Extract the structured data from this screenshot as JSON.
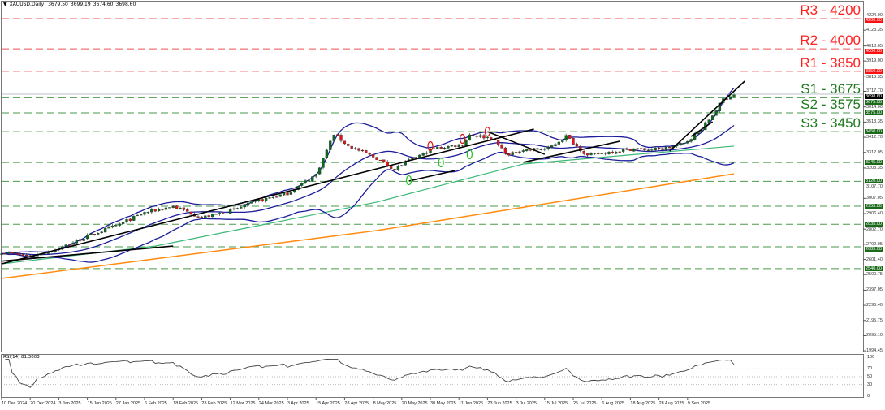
{
  "header": {
    "symbol": "XAUUSD,Daily",
    "open": "3679.50",
    "high": "3699.19",
    "low": "3674.60",
    "close": "3698.60"
  },
  "colors": {
    "up": "#0a6b1e",
    "down": "#e0161b",
    "bands": "#1c1c9c",
    "ma_fast": "#3cb878",
    "ma_slow": "#ff8c10",
    "resistance": "#ff2020",
    "support": "#1e7a1e",
    "trendline": "#000000"
  },
  "chart_data": {
    "type": "candlestick",
    "symbol": "XAUUSD",
    "timeframe": "Daily",
    "ylim": [
      1994.45,
      4224.0
    ],
    "grid": false,
    "price_ticks": [
      "4224.00",
      "4123.35",
      "4018.65",
      "3919.00",
      "3818.35",
      "3717.70",
      "3614.00",
      "3513.35",
      "3412.70",
      "3312.05",
      "3208.35",
      "3107.70",
      "3007.05",
      "2906.40",
      "2802.70",
      "2702.05",
      "2601.40",
      "2500.75",
      "2397.05",
      "2296.40",
      "2195.75",
      "2095.10",
      "1994.45"
    ],
    "date_labels": [
      "10 Dec 2024",
      "20 Dec 2024",
      "3 Jan 2025",
      "15 Jan 2025",
      "27 Jan 2025",
      "6 Feb 2025",
      "18 Feb 2025",
      "28 Feb 2025",
      "12 Mar 2025",
      "24 Mar 2025",
      "3 Apr 2025",
      "15 Apr 2025",
      "28 Apr 2025",
      "8 May 2025",
      "20 May 2025",
      "30 May 2025",
      "11 Jun 2025",
      "23 Jun 2025",
      "3 Jul 2025",
      "15 Jul 2025",
      "25 Jul 2025",
      "6 Aug 2025",
      "18 Aug 2025",
      "28 Aug 2025",
      "9 Sep 2025"
    ],
    "close_path": [
      [
        "2024-12-10",
        2650
      ],
      [
        "2024-12-20",
        2620
      ],
      [
        "2025-01-03",
        2674
      ],
      [
        "2025-01-15",
        2755
      ],
      [
        "2025-01-27",
        2825
      ],
      [
        "2025-02-06",
        2912
      ],
      [
        "2025-02-18",
        2955
      ],
      [
        "2025-02-28",
        2880
      ],
      [
        "2025-03-12",
        2922
      ],
      [
        "2025-03-24",
        2992
      ],
      [
        "2025-04-03",
        3040
      ],
      [
        "2025-04-15",
        3165
      ],
      [
        "2025-04-22",
        3435
      ],
      [
        "2025-04-28",
        3355
      ],
      [
        "2025-05-08",
        3273
      ],
      [
        "2025-05-15",
        3200
      ],
      [
        "2025-05-20",
        3245
      ],
      [
        "2025-05-30",
        3337
      ],
      [
        "2025-06-11",
        3365
      ],
      [
        "2025-06-13",
        3430
      ],
      [
        "2025-06-23",
        3408
      ],
      [
        "2025-06-30",
        3290
      ],
      [
        "2025-07-03",
        3327
      ],
      [
        "2025-07-15",
        3337
      ],
      [
        "2025-07-22",
        3420
      ],
      [
        "2025-07-25",
        3354
      ],
      [
        "2025-07-30",
        3290
      ],
      [
        "2025-08-06",
        3311
      ],
      [
        "2025-08-18",
        3337
      ],
      [
        "2025-08-22",
        3330
      ],
      [
        "2025-08-28",
        3335
      ],
      [
        "2025-09-05",
        3370
      ],
      [
        "2025-09-09",
        3410
      ],
      [
        "2025-09-12",
        3470
      ],
      [
        "2025-09-17",
        3560
      ],
      [
        "2025-09-22",
        3665
      ],
      [
        "2025-09-25",
        3698.6
      ]
    ],
    "ma_fast": [
      [
        "2024-12-10",
        2572
      ],
      [
        "2025-02-11",
        2690
      ],
      [
        "2025-05-08",
        2982
      ],
      [
        "2025-07-04",
        3235
      ],
      [
        "2025-09-25",
        3354
      ]
    ],
    "ma_slow": [
      [
        "2024-12-10",
        2475
      ],
      [
        "2025-05-08",
        2793
      ],
      [
        "2025-09-25",
        3170
      ]
    ],
    "bollinger": {
      "period": 20,
      "deviations": 2
    },
    "levels": [
      {
        "name": "R3 - 4200",
        "price": 4200,
        "tag": "4200.00",
        "kind": "resistance"
      },
      {
        "name": "R2 - 4000",
        "price": 4000,
        "tag": "4000.00",
        "kind": "resistance"
      },
      {
        "name": "R1 - 3850",
        "price": 3850,
        "tag": "3850.00",
        "kind": "resistance"
      },
      {
        "name": "S1 - 3675",
        "price": 3675,
        "tag": "3675.00",
        "kind": "support"
      },
      {
        "name": "S2 - 3575",
        "price": 3575,
        "tag": "3575.00",
        "kind": "support"
      },
      {
        "name": "S3 - 3450",
        "price": 3450,
        "tag": "3450.00",
        "kind": "support"
      },
      {
        "name": "",
        "price": 3245,
        "tag": "3245.00",
        "kind": "support"
      },
      {
        "name": "",
        "price": 3120,
        "tag": "3120.00",
        "kind": "support"
      },
      {
        "name": "",
        "price": 2955,
        "tag": "2955.00",
        "kind": "support"
      },
      {
        "name": "",
        "price": 2835,
        "tag": "2835.00",
        "kind": "support"
      },
      {
        "name": "",
        "price": 2685,
        "tag": "2685.00",
        "kind": "support"
      },
      {
        "name": "",
        "price": 2540,
        "tag": "2540.00",
        "kind": "support"
      }
    ],
    "current_price": {
      "price": 3698.6,
      "tag": "3698.60"
    },
    "trendlines": [
      [
        [
          "2024-12-10",
          2572
        ],
        [
          "2025-07-09",
          3467
        ]
      ],
      [
        [
          "2024-12-10",
          2590
        ],
        [
          "2025-02-18",
          2690
        ]
      ],
      [
        [
          "2025-05-21",
          3122
        ],
        [
          "2025-06-09",
          3192
        ]
      ],
      [
        [
          "2025-06-20",
          3450
        ],
        [
          "2025-07-14",
          3300
        ]
      ],
      [
        [
          "2025-07-04",
          3246
        ],
        [
          "2025-08-12",
          3386
        ]
      ],
      [
        [
          "2025-09-01",
          3321
        ],
        [
          "2025-09-30",
          3785
        ]
      ],
      [
        [
          "2025-09-09",
          3418
        ],
        [
          "2025-09-17",
          3515
        ]
      ]
    ],
    "markers": [
      {
        "date": "2025-05-29",
        "price": 3354,
        "color": "red"
      },
      {
        "date": "2025-06-11",
        "price": 3402,
        "color": "red"
      },
      {
        "date": "2025-06-20",
        "price": 3450,
        "color": "red"
      },
      {
        "date": "2025-05-21",
        "price": 3127,
        "color": "green"
      },
      {
        "date": "2025-06-03",
        "price": 3246,
        "color": "green"
      },
      {
        "date": "2025-06-13",
        "price": 3300,
        "color": "green"
      }
    ],
    "rsi": {
      "label": "RSI(14) 81.3003",
      "period": 14,
      "value": 81.3003,
      "ticks": [
        "100",
        "70",
        "50",
        "30",
        "0"
      ],
      "levels": [
        70,
        50,
        30
      ],
      "ylim": [
        0,
        100
      ]
    }
  }
}
